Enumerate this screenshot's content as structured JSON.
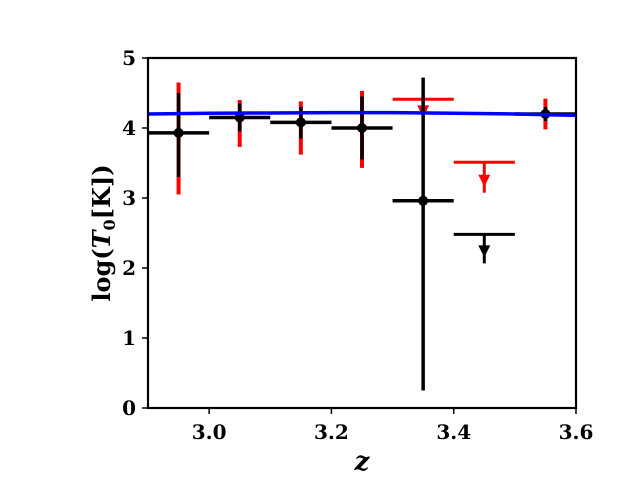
{
  "chart_data": {
    "type": "scatter",
    "xlabel": "z",
    "ylabel_prefix": "log(",
    "ylabel_var": "T",
    "ylabel_sub": "0",
    "ylabel_suffix": "[K])",
    "xlim": [
      2.9,
      3.6
    ],
    "ylim": [
      0,
      5
    ],
    "xticks": [
      3.0,
      3.2,
      3.4,
      3.6
    ],
    "xtick_labels": [
      "3.0",
      "3.2",
      "3.4",
      "3.6"
    ],
    "yticks": [
      0,
      1,
      2,
      3,
      4,
      5
    ],
    "ytick_labels": [
      "0",
      "1",
      "2",
      "3",
      "4",
      "5"
    ],
    "grid": false,
    "colors": {
      "black": "#000000",
      "red": "#ff0000",
      "blue": "#0000ff"
    },
    "red_errorbars": [
      {
        "x": 2.95,
        "lo": 3.05,
        "hi": 4.65
      },
      {
        "x": 3.05,
        "lo": 3.73,
        "hi": 4.4
      },
      {
        "x": 3.15,
        "lo": 3.62,
        "hi": 4.38
      },
      {
        "x": 3.25,
        "lo": 3.43,
        "hi": 4.53
      },
      {
        "x": 3.55,
        "lo": 3.98,
        "hi": 4.42
      }
    ],
    "red_upper_limits": [
      {
        "x": 3.35,
        "xlo": 3.3,
        "xhi": 3.4,
        "y": 4.41,
        "arrow_to": 4.18
      },
      {
        "x": 3.45,
        "xlo": 3.4,
        "xhi": 3.5,
        "y": 3.51,
        "arrow_to": 3.19
      }
    ],
    "black_points": [
      {
        "x": 2.95,
        "y": 3.93,
        "xlo": 2.9,
        "xhi": 3.0,
        "ylo": 3.3,
        "yhi": 4.5
      },
      {
        "x": 3.05,
        "y": 4.15,
        "xlo": 3.0,
        "xhi": 3.1,
        "ylo": 3.95,
        "yhi": 4.35
      },
      {
        "x": 3.15,
        "y": 4.08,
        "xlo": 3.1,
        "xhi": 3.2,
        "ylo": 3.85,
        "yhi": 4.3
      },
      {
        "x": 3.25,
        "y": 4.0,
        "xlo": 3.2,
        "xhi": 3.3,
        "ylo": 3.55,
        "yhi": 4.45
      },
      {
        "x": 3.35,
        "y": 2.96,
        "xlo": 3.3,
        "xhi": 3.4,
        "ylo": 0.25,
        "yhi": 4.72
      },
      {
        "x": 3.55,
        "y": 4.2,
        "xlo": 3.5,
        "xhi": 3.6,
        "ylo": 4.1,
        "yhi": 4.3
      }
    ],
    "black_upper_limits": [
      {
        "x": 3.45,
        "xlo": 3.4,
        "xhi": 3.5,
        "y": 2.48,
        "arrow_to": 2.18
      }
    ],
    "blue_line": {
      "x": [
        2.9,
        3.0,
        3.1,
        3.2,
        3.3,
        3.4,
        3.5,
        3.6
      ],
      "y": [
        4.2,
        4.21,
        4.215,
        4.22,
        4.22,
        4.21,
        4.2,
        4.18
      ]
    }
  }
}
